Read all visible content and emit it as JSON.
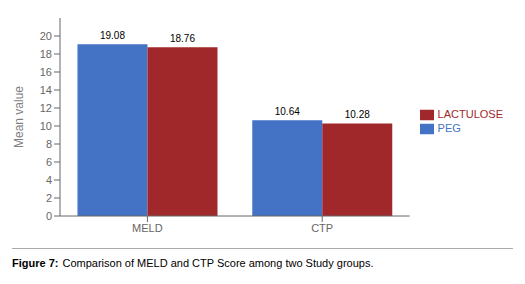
{
  "chart_data": {
    "type": "bar",
    "categories": [
      "MELD",
      "CTP"
    ],
    "series": [
      {
        "name": "PEG",
        "color": "#4472C4",
        "values": [
          19.08,
          10.64
        ]
      },
      {
        "name": "LACTULOSE",
        "color": "#A0282A",
        "values": [
          18.76,
          10.28
        ]
      }
    ],
    "y_label": "Mean value",
    "ylim": [
      0,
      22
    ],
    "yticks": [
      0,
      2,
      4,
      6,
      8,
      10,
      12,
      14,
      16,
      18,
      20
    ],
    "data_labels": true,
    "legend": "right",
    "grid": false,
    "annotations": [
      "Figure 7:",
      "Comparison of MELD and CTP Score among two Study groups."
    ]
  }
}
